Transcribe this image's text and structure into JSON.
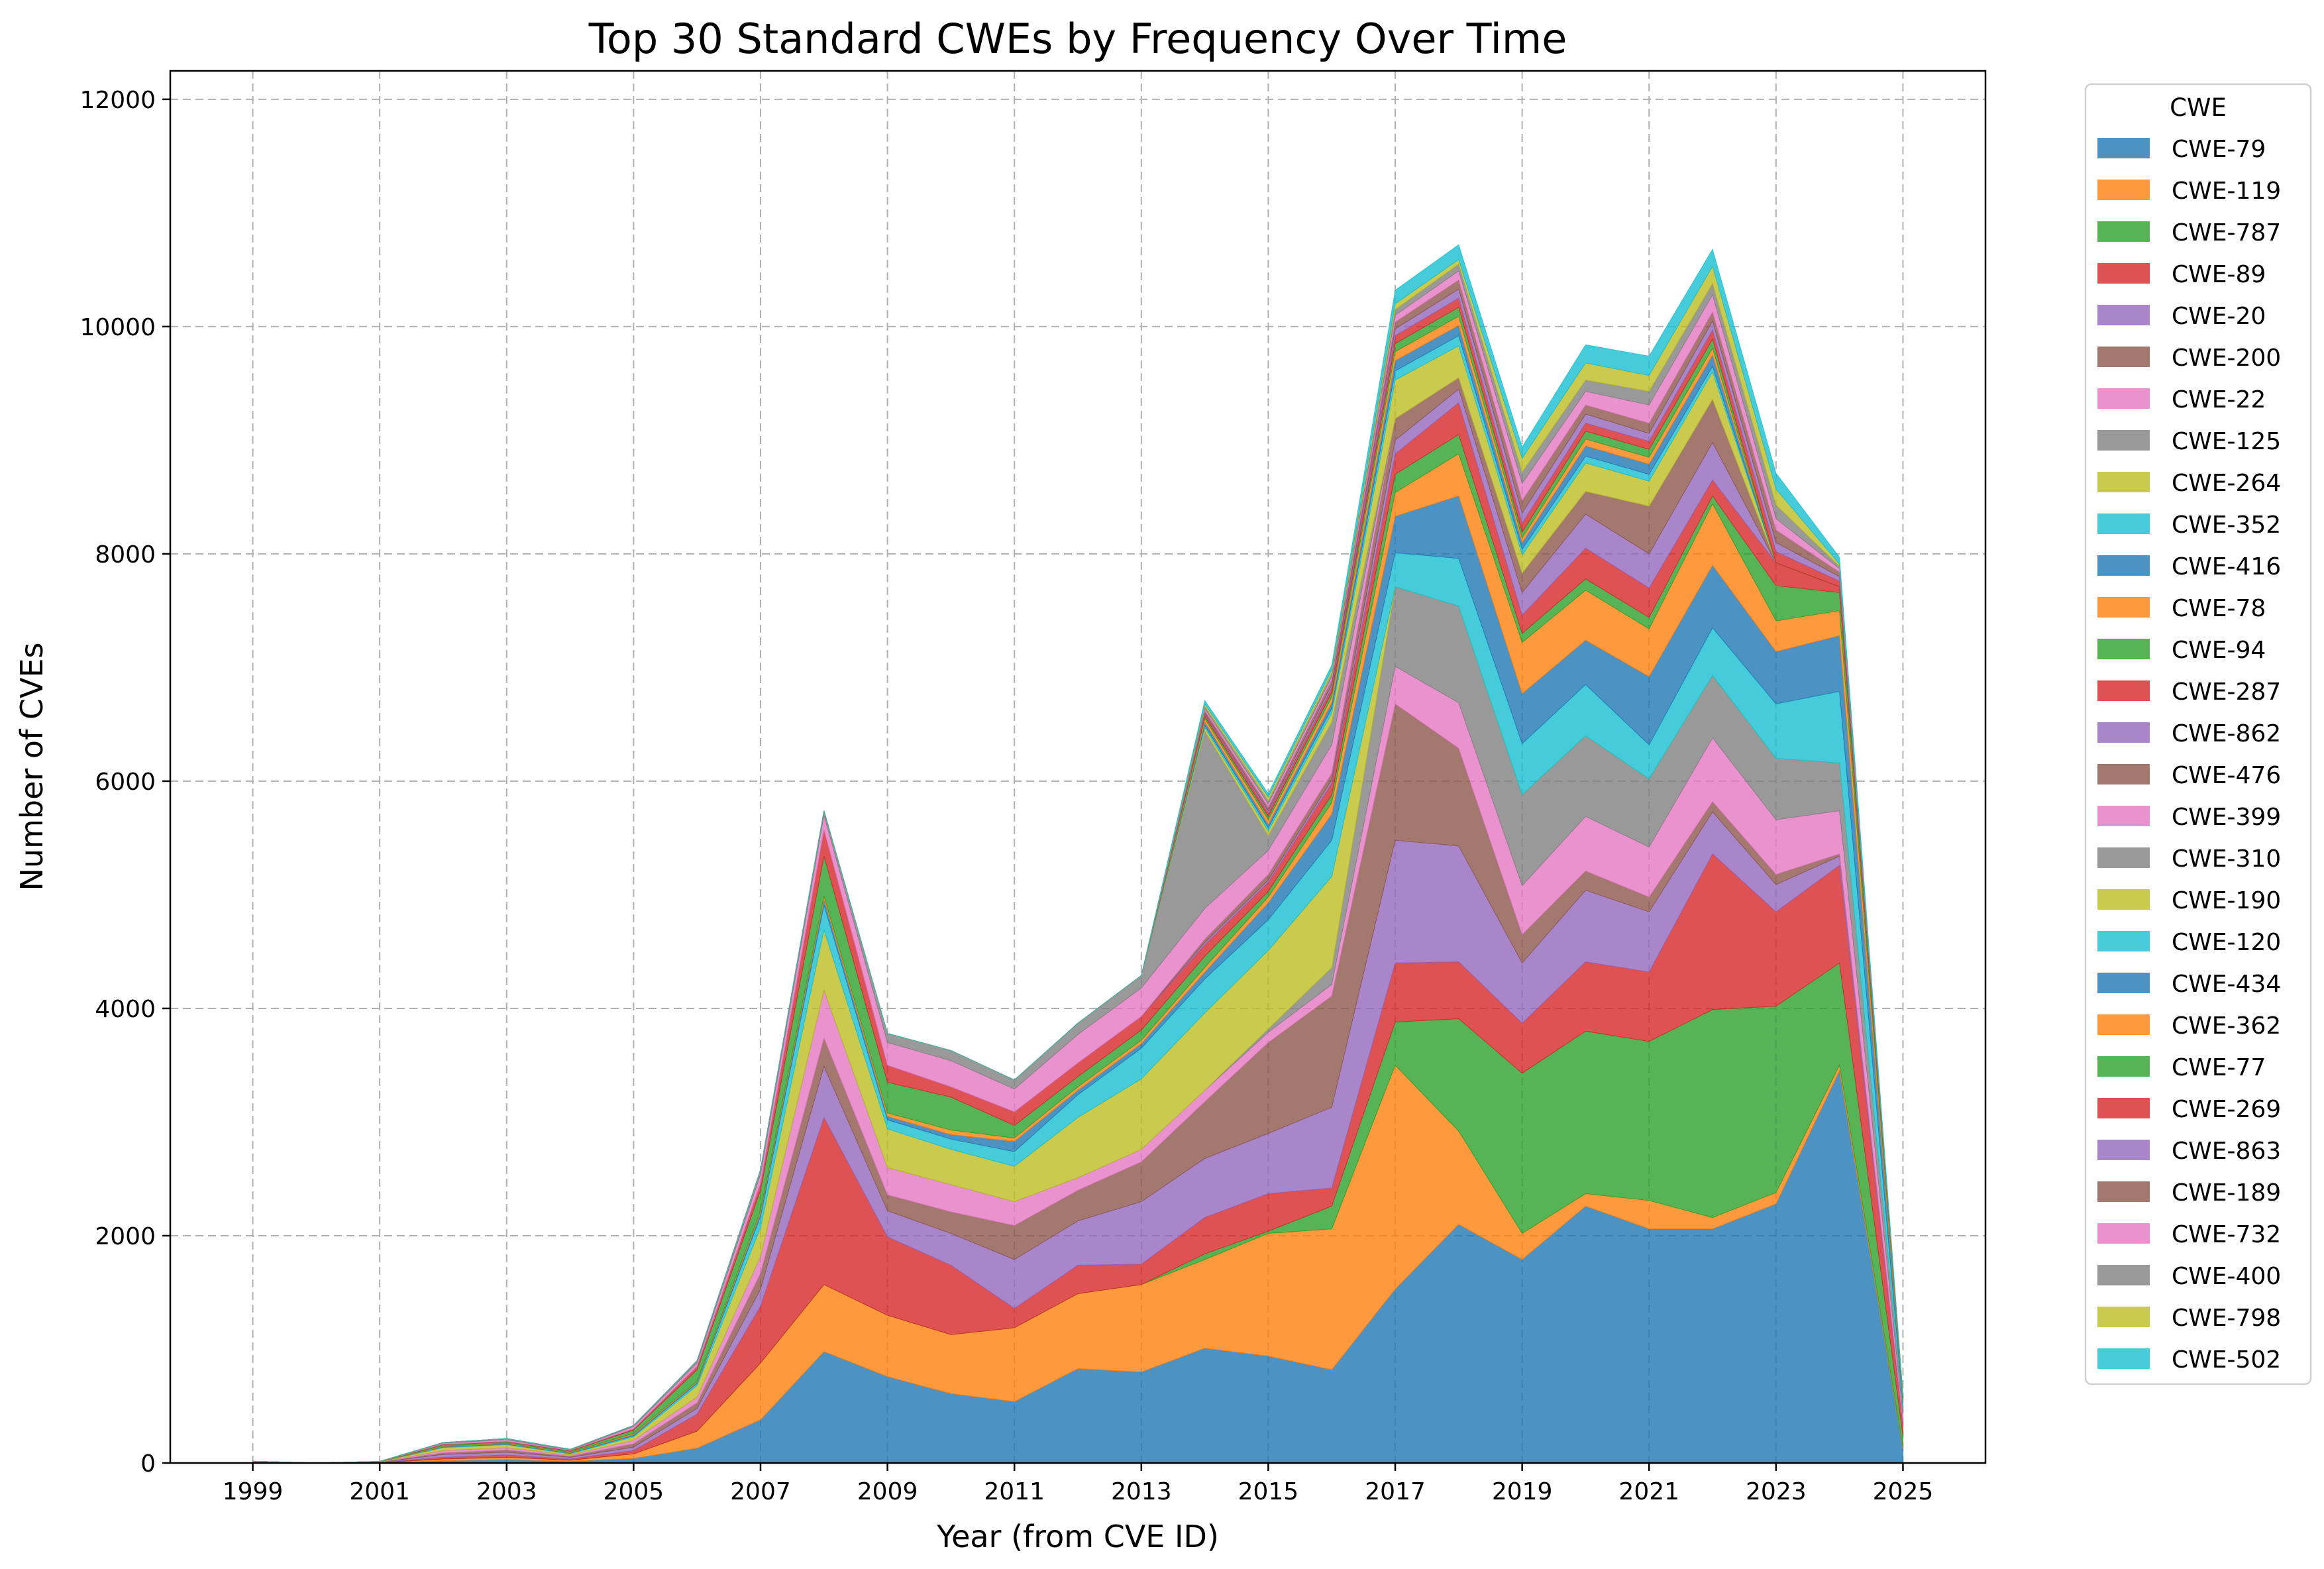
{
  "chart_data": {
    "type": "area",
    "stacked": true,
    "title": "Top 30 Standard CWEs by Frequency Over Time",
    "xlabel": "Year (from CVE ID)",
    "ylabel": "Number of CVEs",
    "ylim": [
      0,
      12250
    ],
    "y_ticks": [
      0,
      2000,
      4000,
      6000,
      8000,
      10000,
      12000
    ],
    "x_ticks": [
      1999,
      2001,
      2003,
      2005,
      2007,
      2009,
      2011,
      2013,
      2015,
      2017,
      2019,
      2021,
      2023,
      2025
    ],
    "x_tick_labels": [
      "1999",
      "2001",
      "2003",
      "2005",
      "2007",
      "2009",
      "2011",
      "2013",
      "2015",
      "2017",
      "2019",
      "2021",
      "2023",
      "2025"
    ],
    "y_tick_labels": [
      "0",
      "2000",
      "4000",
      "6000",
      "8000",
      "10000",
      "12000"
    ],
    "grid": true,
    "legend_title": "CWE",
    "legend_position": "outside-right",
    "x": [
      1999,
      2000,
      2001,
      2002,
      2003,
      2004,
      2005,
      2006,
      2007,
      2008,
      2009,
      2010,
      2011,
      2012,
      2013,
      2014,
      2015,
      2016,
      2017,
      2018,
      2019,
      2020,
      2021,
      2022,
      2023,
      2024,
      2025
    ],
    "series": [
      {
        "name": "CWE-79",
        "color": "#1f77b4",
        "values": [
          2,
          0,
          2,
          20,
          30,
          15,
          40,
          130,
          380,
          980,
          760,
          610,
          540,
          830,
          800,
          1010,
          940,
          820,
          1530,
          2100,
          1790,
          2260,
          2060,
          2060,
          2280,
          3450,
          120
        ]
      },
      {
        "name": "CWE-119",
        "color": "#ff7f0e",
        "values": [
          3,
          0,
          2,
          15,
          20,
          10,
          40,
          150,
          500,
          590,
          540,
          520,
          650,
          660,
          770,
          780,
          1080,
          1240,
          1970,
          820,
          230,
          110,
          250,
          100,
          100,
          50,
          20
        ]
      },
      {
        "name": "CWE-787",
        "color": "#2ca02c",
        "values": [
          0,
          0,
          0,
          0,
          0,
          0,
          0,
          0,
          0,
          0,
          0,
          0,
          0,
          0,
          0,
          50,
          20,
          200,
          380,
          990,
          1410,
          1430,
          1400,
          1830,
          1640,
          900,
          100
        ]
      },
      {
        "name": "CWE-89",
        "color": "#d62728",
        "values": [
          1,
          0,
          1,
          15,
          20,
          10,
          30,
          150,
          500,
          1470,
          690,
          610,
          170,
          250,
          180,
          320,
          330,
          160,
          520,
          500,
          440,
          610,
          610,
          1370,
          830,
          860,
          90
        ]
      },
      {
        "name": "CWE-20",
        "color": "#9467bd",
        "values": [
          2,
          0,
          2,
          25,
          25,
          15,
          30,
          50,
          150,
          450,
          230,
          280,
          430,
          390,
          550,
          520,
          530,
          710,
          1080,
          1020,
          530,
          630,
          530,
          370,
          240,
          80,
          20
        ]
      },
      {
        "name": "CWE-200",
        "color": "#8c564b",
        "values": [
          1,
          0,
          1,
          15,
          20,
          10,
          30,
          50,
          140,
          250,
          140,
          190,
          300,
          270,
          350,
          500,
          800,
          980,
          1200,
          860,
          250,
          170,
          130,
          90,
          90,
          20,
          10
        ]
      },
      {
        "name": "CWE-22",
        "color": "#e377c2",
        "values": [
          2,
          0,
          2,
          20,
          20,
          10,
          30,
          50,
          150,
          420,
          240,
          240,
          210,
          110,
          110,
          100,
          90,
          100,
          330,
          400,
          430,
          480,
          440,
          560,
          480,
          380,
          60
        ]
      },
      {
        "name": "CWE-125",
        "color": "#7f7f7f",
        "values": [
          0,
          0,
          0,
          0,
          0,
          0,
          0,
          0,
          0,
          0,
          0,
          0,
          0,
          0,
          0,
          0,
          30,
          150,
          700,
          850,
          800,
          710,
          600,
          550,
          540,
          420,
          60
        ]
      },
      {
        "name": "CWE-264",
        "color": "#bcbd22",
        "values": [
          2,
          0,
          2,
          25,
          25,
          10,
          30,
          100,
          250,
          530,
          340,
          310,
          310,
          530,
          620,
          680,
          690,
          800,
          0,
          0,
          0,
          0,
          0,
          0,
          0,
          0,
          0
        ]
      },
      {
        "name": "CWE-352",
        "color": "#17becf",
        "values": [
          0,
          0,
          0,
          5,
          5,
          5,
          10,
          20,
          100,
          220,
          80,
          90,
          130,
          200,
          270,
          300,
          270,
          320,
          300,
          420,
          450,
          450,
          300,
          420,
          480,
          630,
          40
        ]
      },
      {
        "name": "CWE-416",
        "color": "#1f77b4",
        "values": [
          0,
          0,
          0,
          5,
          5,
          5,
          10,
          10,
          30,
          50,
          30,
          40,
          90,
          40,
          40,
          60,
          150,
          230,
          320,
          550,
          440,
          390,
          600,
          550,
          460,
          490,
          30
        ]
      },
      {
        "name": "CWE-78",
        "color": "#ff7f0e",
        "values": [
          0,
          0,
          0,
          5,
          5,
          5,
          10,
          10,
          20,
          30,
          30,
          40,
          30,
          30,
          30,
          40,
          50,
          100,
          210,
          370,
          450,
          440,
          420,
          540,
          270,
          220,
          20
        ]
      },
      {
        "name": "CWE-94",
        "color": "#2ca02c",
        "values": [
          1,
          0,
          1,
          10,
          10,
          10,
          30,
          100,
          180,
          350,
          270,
          290,
          110,
          90,
          90,
          100,
          50,
          70,
          160,
          170,
          80,
          100,
          100,
          70,
          310,
          160,
          10
        ]
      },
      {
        "name": "CWE-287",
        "color": "#d62728",
        "values": [
          0,
          0,
          0,
          5,
          5,
          5,
          10,
          30,
          60,
          230,
          150,
          90,
          120,
          120,
          120,
          100,
          80,
          100,
          180,
          280,
          160,
          270,
          260,
          140,
          200,
          50,
          10
        ]
      },
      {
        "name": "CWE-862",
        "color": "#9467bd",
        "values": [
          0,
          0,
          0,
          0,
          0,
          0,
          0,
          0,
          0,
          0,
          0,
          0,
          0,
          0,
          0,
          20,
          20,
          30,
          120,
          120,
          200,
          300,
          300,
          330,
          0,
          0,
          0
        ]
      },
      {
        "name": "CWE-476",
        "color": "#8c564b",
        "values": [
          0,
          0,
          0,
          0,
          0,
          0,
          0,
          0,
          0,
          0,
          0,
          0,
          0,
          0,
          0,
          30,
          50,
          60,
          190,
          100,
          170,
          200,
          420,
          380,
          0,
          0,
          0
        ]
      },
      {
        "name": "CWE-399",
        "color": "#e377c2",
        "values": [
          1,
          0,
          1,
          10,
          15,
          5,
          20,
          30,
          80,
          130,
          200,
          230,
          200,
          250,
          250,
          270,
          210,
          250,
          0,
          0,
          0,
          0,
          0,
          0,
          0,
          0,
          0
        ]
      },
      {
        "name": "CWE-310",
        "color": "#7f7f7f",
        "values": [
          0,
          0,
          0,
          5,
          10,
          5,
          10,
          20,
          40,
          40,
          80,
          90,
          80,
          100,
          110,
          1560,
          130,
          200,
          0,
          0,
          0,
          0,
          0,
          0,
          0,
          0,
          0
        ]
      },
      {
        "name": "CWE-190",
        "color": "#bcbd22",
        "values": [
          0,
          0,
          0,
          0,
          0,
          0,
          0,
          0,
          0,
          0,
          0,
          0,
          0,
          0,
          0,
          30,
          40,
          80,
          340,
          280,
          160,
          250,
          220,
          240,
          0,
          0,
          0
        ]
      },
      {
        "name": "CWE-120",
        "color": "#17becf",
        "values": [
          0,
          0,
          0,
          0,
          0,
          0,
          0,
          0,
          0,
          0,
          0,
          0,
          0,
          0,
          0,
          20,
          30,
          40,
          80,
          90,
          50,
          60,
          60,
          50,
          0,
          0,
          0
        ]
      },
      {
        "name": "CWE-434",
        "color": "#1f77b4",
        "values": [
          0,
          0,
          0,
          0,
          0,
          0,
          0,
          0,
          0,
          0,
          0,
          0,
          0,
          0,
          0,
          30,
          30,
          50,
          90,
          90,
          60,
          90,
          90,
          100,
          0,
          0,
          0
        ]
      },
      {
        "name": "CWE-362",
        "color": "#ff7f0e",
        "values": [
          0,
          0,
          0,
          0,
          0,
          0,
          0,
          0,
          0,
          0,
          0,
          0,
          0,
          0,
          0,
          30,
          40,
          50,
          80,
          80,
          40,
          60,
          60,
          60,
          0,
          0,
          0
        ]
      },
      {
        "name": "CWE-77",
        "color": "#2ca02c",
        "values": [
          0,
          0,
          0,
          0,
          0,
          0,
          0,
          0,
          0,
          0,
          0,
          0,
          0,
          0,
          0,
          20,
          30,
          40,
          70,
          80,
          50,
          70,
          70,
          80,
          0,
          0,
          0
        ]
      },
      {
        "name": "CWE-269",
        "color": "#d62728",
        "values": [
          0,
          0,
          0,
          0,
          0,
          0,
          0,
          0,
          0,
          0,
          0,
          0,
          0,
          0,
          0,
          20,
          30,
          40,
          70,
          80,
          80,
          70,
          70,
          80,
          100,
          50,
          0
        ]
      },
      {
        "name": "CWE-863",
        "color": "#9467bd",
        "values": [
          0,
          0,
          0,
          0,
          0,
          0,
          0,
          0,
          0,
          0,
          0,
          0,
          0,
          0,
          0,
          10,
          20,
          30,
          60,
          80,
          90,
          80,
          70,
          80,
          80,
          40,
          0
        ]
      },
      {
        "name": "CWE-189",
        "color": "#8c564b",
        "values": [
          0,
          0,
          0,
          0,
          0,
          0,
          0,
          0,
          0,
          0,
          0,
          0,
          0,
          0,
          0,
          20,
          30,
          40,
          60,
          80,
          110,
          80,
          90,
          80,
          110,
          40,
          0
        ]
      },
      {
        "name": "CWE-732",
        "color": "#e377c2",
        "values": [
          0,
          0,
          0,
          0,
          0,
          0,
          0,
          0,
          0,
          0,
          0,
          0,
          0,
          0,
          0,
          20,
          30,
          30,
          60,
          80,
          150,
          120,
          160,
          150,
          100,
          30,
          0
        ]
      },
      {
        "name": "CWE-400",
        "color": "#7f7f7f",
        "values": [
          0,
          0,
          0,
          0,
          0,
          0,
          0,
          0,
          0,
          0,
          0,
          0,
          0,
          0,
          0,
          20,
          30,
          30,
          50,
          60,
          100,
          100,
          120,
          100,
          120,
          20,
          0
        ]
      },
      {
        "name": "CWE-798",
        "color": "#bcbd22",
        "values": [
          0,
          0,
          0,
          0,
          0,
          0,
          0,
          0,
          0,
          0,
          0,
          0,
          0,
          0,
          0,
          20,
          30,
          30,
          50,
          40,
          120,
          150,
          140,
          150,
          140,
          20,
          0
        ]
      },
      {
        "name": "CWE-502",
        "color": "#17becf",
        "values": [
          0,
          0,
          0,
          0,
          0,
          0,
          0,
          0,
          0,
          0,
          0,
          0,
          0,
          0,
          0,
          30,
          30,
          40,
          120,
          130,
          100,
          160,
          170,
          150,
          140,
          60,
          10
        ]
      }
    ]
  }
}
